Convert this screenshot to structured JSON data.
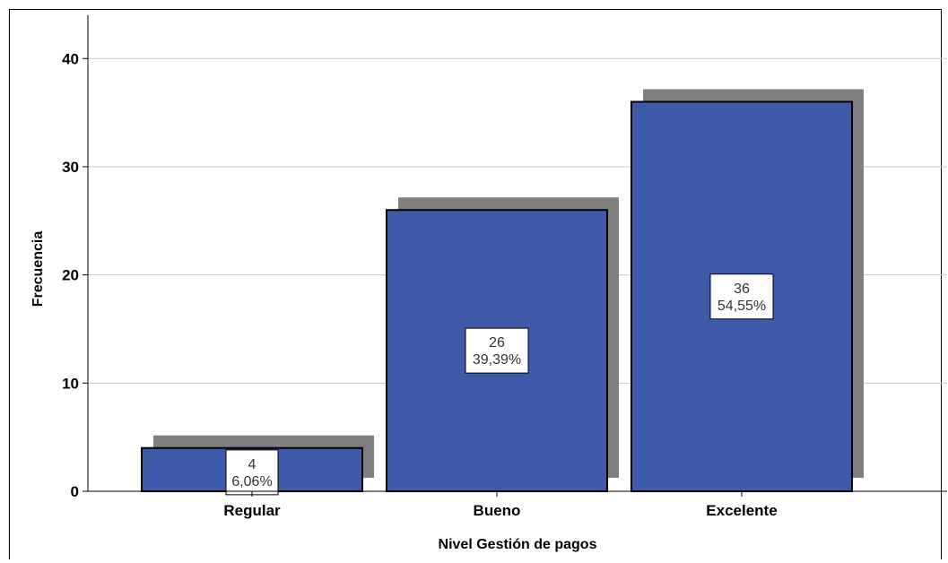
{
  "chart_data": {
    "type": "bar",
    "categories": [
      "Regular",
      "Bueno",
      "Excelente"
    ],
    "values": [
      4,
      26,
      36
    ],
    "percent_labels": [
      "6,06%",
      "39,39%",
      "54,55%"
    ],
    "title": "",
    "xlabel": "Nivel Gestión de pagos",
    "ylabel": "Frecuencia",
    "ylim": [
      0,
      44
    ],
    "yticks": [
      0,
      10,
      20,
      30,
      40
    ],
    "grid": true,
    "bar_color": "#3f5aa8",
    "shadow_color": "#7f7f7f"
  }
}
